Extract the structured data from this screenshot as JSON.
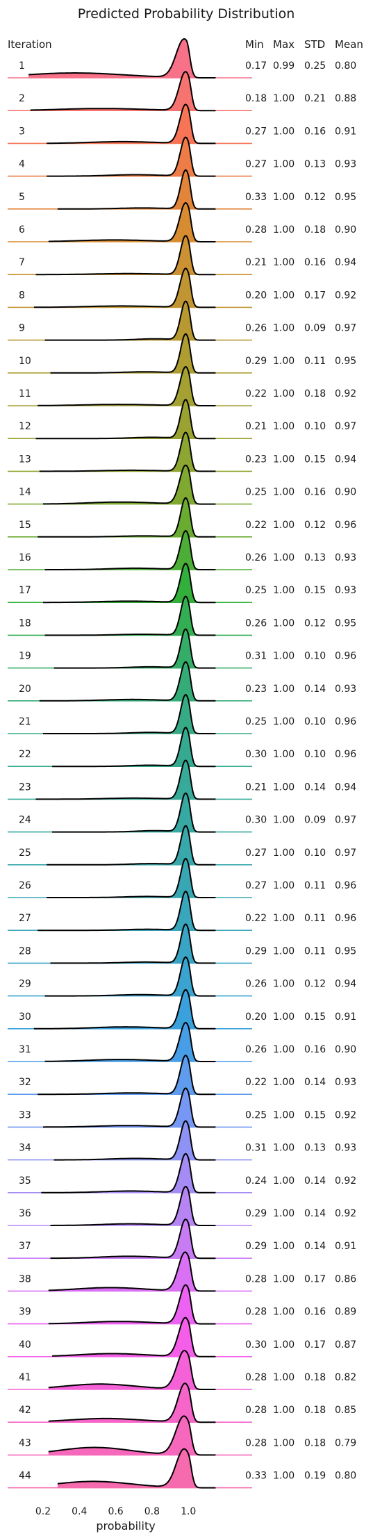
{
  "chart_data": {
    "type": "area",
    "title": "Predicted Probability Distribution",
    "xlabel": "probability",
    "ylabel": "",
    "xlim": [
      0.1,
      1.15
    ],
    "x_ticks": [
      0.2,
      0.4,
      0.6,
      0.8,
      1.0
    ],
    "x_tick_labels": [
      "0.2",
      "0.4",
      "0.6",
      "0.8",
      "1.0"
    ],
    "grid": false,
    "row_header": "Iteration",
    "stat_headers": [
      "Min",
      "Max",
      "STD",
      "Mean"
    ],
    "series": [
      {
        "name": "1",
        "min": 0.17,
        "max": 0.99,
        "std": 0.25,
        "mean": 0.8
      },
      {
        "name": "2",
        "min": 0.18,
        "max": 1.0,
        "std": 0.21,
        "mean": 0.88
      },
      {
        "name": "3",
        "min": 0.27,
        "max": 1.0,
        "std": 0.16,
        "mean": 0.91
      },
      {
        "name": "4",
        "min": 0.27,
        "max": 1.0,
        "std": 0.13,
        "mean": 0.93
      },
      {
        "name": "5",
        "min": 0.33,
        "max": 1.0,
        "std": 0.12,
        "mean": 0.95
      },
      {
        "name": "6",
        "min": 0.28,
        "max": 1.0,
        "std": 0.18,
        "mean": 0.9
      },
      {
        "name": "7",
        "min": 0.21,
        "max": 1.0,
        "std": 0.16,
        "mean": 0.94
      },
      {
        "name": "8",
        "min": 0.2,
        "max": 1.0,
        "std": 0.17,
        "mean": 0.92
      },
      {
        "name": "9",
        "min": 0.26,
        "max": 1.0,
        "std": 0.09,
        "mean": 0.97
      },
      {
        "name": "10",
        "min": 0.29,
        "max": 1.0,
        "std": 0.11,
        "mean": 0.95
      },
      {
        "name": "11",
        "min": 0.22,
        "max": 1.0,
        "std": 0.18,
        "mean": 0.92
      },
      {
        "name": "12",
        "min": 0.21,
        "max": 1.0,
        "std": 0.1,
        "mean": 0.97
      },
      {
        "name": "13",
        "min": 0.23,
        "max": 1.0,
        "std": 0.15,
        "mean": 0.94
      },
      {
        "name": "14",
        "min": 0.25,
        "max": 1.0,
        "std": 0.16,
        "mean": 0.9
      },
      {
        "name": "15",
        "min": 0.22,
        "max": 1.0,
        "std": 0.12,
        "mean": 0.96
      },
      {
        "name": "16",
        "min": 0.26,
        "max": 1.0,
        "std": 0.13,
        "mean": 0.93
      },
      {
        "name": "17",
        "min": 0.25,
        "max": 1.0,
        "std": 0.15,
        "mean": 0.93
      },
      {
        "name": "18",
        "min": 0.26,
        "max": 1.0,
        "std": 0.12,
        "mean": 0.95
      },
      {
        "name": "19",
        "min": 0.31,
        "max": 1.0,
        "std": 0.1,
        "mean": 0.96
      },
      {
        "name": "20",
        "min": 0.23,
        "max": 1.0,
        "std": 0.14,
        "mean": 0.93
      },
      {
        "name": "21",
        "min": 0.25,
        "max": 1.0,
        "std": 0.1,
        "mean": 0.96
      },
      {
        "name": "22",
        "min": 0.3,
        "max": 1.0,
        "std": 0.1,
        "mean": 0.96
      },
      {
        "name": "23",
        "min": 0.21,
        "max": 1.0,
        "std": 0.14,
        "mean": 0.94
      },
      {
        "name": "24",
        "min": 0.3,
        "max": 1.0,
        "std": 0.09,
        "mean": 0.97
      },
      {
        "name": "25",
        "min": 0.27,
        "max": 1.0,
        "std": 0.1,
        "mean": 0.97
      },
      {
        "name": "26",
        "min": 0.27,
        "max": 1.0,
        "std": 0.11,
        "mean": 0.96
      },
      {
        "name": "27",
        "min": 0.22,
        "max": 1.0,
        "std": 0.11,
        "mean": 0.96
      },
      {
        "name": "28",
        "min": 0.29,
        "max": 1.0,
        "std": 0.11,
        "mean": 0.95
      },
      {
        "name": "29",
        "min": 0.26,
        "max": 1.0,
        "std": 0.12,
        "mean": 0.94
      },
      {
        "name": "30",
        "min": 0.2,
        "max": 1.0,
        "std": 0.15,
        "mean": 0.91
      },
      {
        "name": "31",
        "min": 0.26,
        "max": 1.0,
        "std": 0.16,
        "mean": 0.9
      },
      {
        "name": "32",
        "min": 0.22,
        "max": 1.0,
        "std": 0.14,
        "mean": 0.93
      },
      {
        "name": "33",
        "min": 0.25,
        "max": 1.0,
        "std": 0.15,
        "mean": 0.92
      },
      {
        "name": "34",
        "min": 0.31,
        "max": 1.0,
        "std": 0.13,
        "mean": 0.93
      },
      {
        "name": "35",
        "min": 0.24,
        "max": 1.0,
        "std": 0.14,
        "mean": 0.92
      },
      {
        "name": "36",
        "min": 0.29,
        "max": 1.0,
        "std": 0.14,
        "mean": 0.92
      },
      {
        "name": "37",
        "min": 0.29,
        "max": 1.0,
        "std": 0.14,
        "mean": 0.91
      },
      {
        "name": "38",
        "min": 0.28,
        "max": 1.0,
        "std": 0.17,
        "mean": 0.86
      },
      {
        "name": "39",
        "min": 0.28,
        "max": 1.0,
        "std": 0.16,
        "mean": 0.89
      },
      {
        "name": "40",
        "min": 0.3,
        "max": 1.0,
        "std": 0.17,
        "mean": 0.87
      },
      {
        "name": "41",
        "min": 0.28,
        "max": 1.0,
        "std": 0.18,
        "mean": 0.82
      },
      {
        "name": "42",
        "min": 0.28,
        "max": 1.0,
        "std": 0.18,
        "mean": 0.85
      },
      {
        "name": "43",
        "min": 0.28,
        "max": 1.0,
        "std": 0.18,
        "mean": 0.79
      },
      {
        "name": "44",
        "min": 0.33,
        "max": 1.0,
        "std": 0.19,
        "mean": 0.8
      }
    ]
  }
}
